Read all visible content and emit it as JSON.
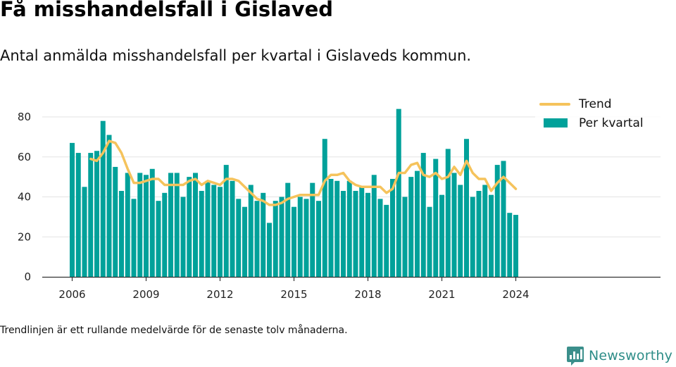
{
  "header": {
    "title": "Få misshandelsfall i Gislaved",
    "subtitle": "Antal anmälda misshandelsfall per kvartal i Gislaveds kommun."
  },
  "footer": {
    "note": "Trendlinjen är ett rullande medelvärde för de senaste tolv månaderna.",
    "brand": "Newsworthy",
    "brand_icon": "newsworthy-logo-icon"
  },
  "colors": {
    "bars": "#00a19a",
    "trend": "#f5c35c",
    "grid": "#e3e3e3",
    "axis": "#333333",
    "brand": "#2e8d88"
  },
  "chart_data": {
    "type": "bar",
    "x_unit": "quarter",
    "start": "2006 Q1",
    "ylim": [
      0,
      85
    ],
    "yticks": [
      0,
      20,
      40,
      60,
      80
    ],
    "xticks": [
      "2006",
      "2009",
      "2012",
      "2015",
      "2018",
      "2021",
      "2024"
    ],
    "grid": "horizontal",
    "legend": {
      "position": "top-right",
      "entries": [
        "Trend",
        "Per kvartal"
      ]
    },
    "series": [
      {
        "name": "Per kvartal",
        "type": "bar",
        "values": [
          67,
          62,
          45,
          62,
          63,
          78,
          71,
          55,
          43,
          52,
          39,
          52,
          51,
          54,
          38,
          42,
          52,
          52,
          40,
          50,
          52,
          43,
          48,
          46,
          45,
          56,
          48,
          39,
          35,
          46,
          38,
          42,
          27,
          38,
          40,
          47,
          35,
          40,
          39,
          47,
          38,
          69,
          49,
          48,
          43,
          48,
          43,
          45,
          42,
          51,
          39,
          36,
          49,
          84,
          40,
          50,
          53,
          62,
          35,
          59,
          41,
          64,
          52,
          46,
          69,
          40,
          43,
          46,
          41,
          56,
          58,
          32,
          31
        ]
      },
      {
        "name": "Trend",
        "type": "line",
        "values": [
          null,
          null,
          null,
          59,
          58,
          62,
          68,
          67,
          62,
          54,
          47,
          47,
          48,
          49,
          49,
          46,
          46,
          46,
          46,
          48,
          49,
          46,
          48,
          47,
          46,
          49,
          49,
          48,
          45,
          42,
          39,
          38,
          36,
          36,
          37,
          39,
          40,
          41,
          41,
          41,
          41,
          48,
          51,
          51,
          52,
          48,
          46,
          45,
          45,
          45,
          45,
          42,
          44,
          52,
          52,
          56,
          57,
          51,
          50,
          52,
          49,
          50,
          55,
          51,
          58,
          52,
          49,
          49,
          43,
          47,
          50,
          47,
          44
        ]
      }
    ]
  }
}
